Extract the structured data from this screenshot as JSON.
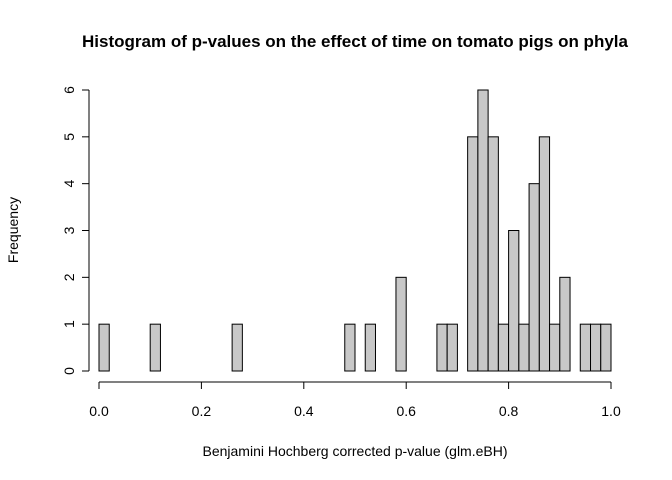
{
  "chart_data": {
    "type": "bar",
    "title": "Histogram of p-values on the effect of time on tomato pigs on phyla",
    "xlabel": "Benjamini Hochberg corrected p-value (glm.eBH)",
    "ylabel": "Frequency",
    "xlim": [
      0,
      1
    ],
    "ylim": [
      0,
      6
    ],
    "bin_width": 0.02,
    "bin_start": 0.0,
    "x_ticks": [
      "0.0",
      "0.2",
      "0.4",
      "0.6",
      "0.8",
      "1.0"
    ],
    "y_ticks": [
      "0",
      "1",
      "2",
      "3",
      "4",
      "5",
      "6"
    ],
    "grid": false,
    "bar_color": "#c8c8c8",
    "edge_color": "#000000",
    "counts": [
      1,
      0,
      0,
      0,
      0,
      1,
      0,
      0,
      0,
      0,
      0,
      0,
      0,
      1,
      0,
      0,
      0,
      0,
      0,
      0,
      0,
      0,
      0,
      0,
      1,
      0,
      1,
      0,
      0,
      2,
      0,
      0,
      0,
      1,
      1,
      0,
      5,
      6,
      5,
      1,
      3,
      1,
      4,
      5,
      1,
      2,
      0,
      1,
      1,
      1
    ]
  }
}
